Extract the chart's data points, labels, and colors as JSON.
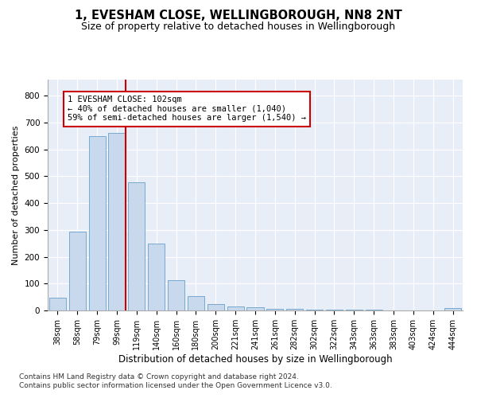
{
  "title1": "1, EVESHAM CLOSE, WELLINGBOROUGH, NN8 2NT",
  "title2": "Size of property relative to detached houses in Wellingborough",
  "xlabel": "Distribution of detached houses by size in Wellingborough",
  "ylabel": "Number of detached properties",
  "footnote1": "Contains HM Land Registry data © Crown copyright and database right 2024.",
  "footnote2": "Contains public sector information licensed under the Open Government Licence v3.0.",
  "annotation_line1": "1 EVESHAM CLOSE: 102sqm",
  "annotation_line2": "← 40% of detached houses are smaller (1,040)",
  "annotation_line3": "59% of semi-detached houses are larger (1,540) →",
  "categories": [
    "38sqm",
    "58sqm",
    "79sqm",
    "99sqm",
    "119sqm",
    "140sqm",
    "160sqm",
    "180sqm",
    "200sqm",
    "221sqm",
    "241sqm",
    "261sqm",
    "282sqm",
    "302sqm",
    "322sqm",
    "343sqm",
    "363sqm",
    "383sqm",
    "403sqm",
    "424sqm",
    "444sqm"
  ],
  "values": [
    47,
    295,
    650,
    660,
    478,
    248,
    113,
    53,
    25,
    15,
    12,
    7,
    5,
    4,
    3,
    2,
    2,
    1,
    1,
    0,
    8
  ],
  "bar_color": "#c8d9ee",
  "bar_edge_color": "#6a9fcb",
  "vline_x_index": 3,
  "vline_color": "#cc0000",
  "annotation_box_color": "#cc0000",
  "background_color": "#e8eef8",
  "ylim": [
    0,
    860
  ],
  "yticks": [
    0,
    100,
    200,
    300,
    400,
    500,
    600,
    700,
    800
  ],
  "title1_fontsize": 10.5,
  "title2_fontsize": 9,
  "xlabel_fontsize": 8.5,
  "ylabel_fontsize": 8,
  "tick_fontsize": 7.5,
  "annotation_fontsize": 7.5,
  "footnote_fontsize": 6.5
}
